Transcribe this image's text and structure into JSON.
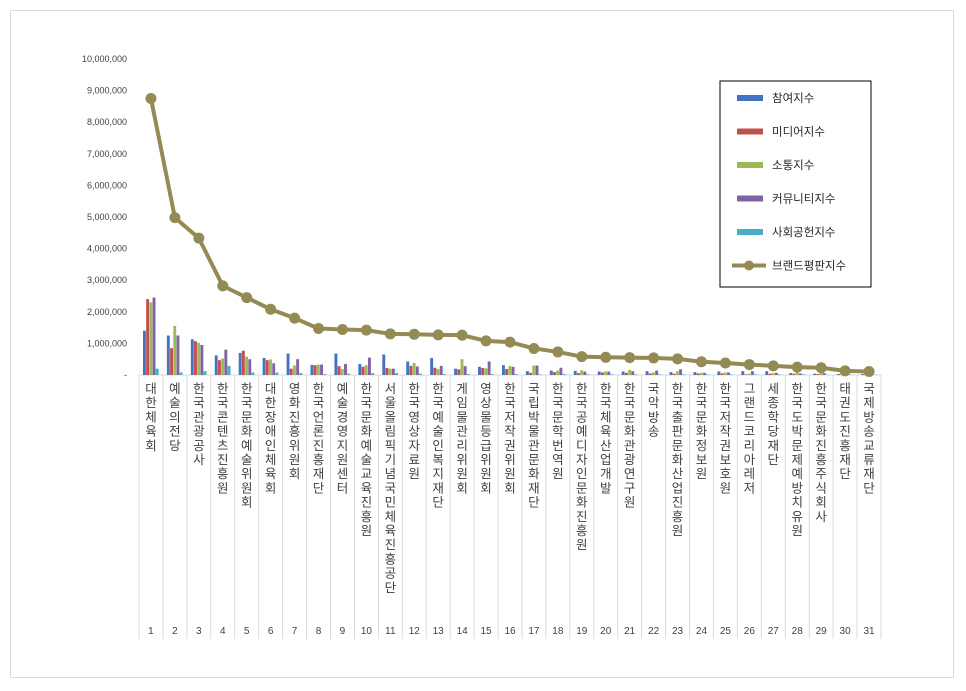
{
  "chart_data": {
    "type": "bar",
    "title": "",
    "xlabel": "",
    "ylabel": "",
    "ylim": [
      0,
      10000000
    ],
    "yticks": [
      "-",
      "1,000,000",
      "2,000,000",
      "3,000,000",
      "4,000,000",
      "5,000,000",
      "6,000,000",
      "7,000,000",
      "8,000,000",
      "9,000,000",
      "10,000,000"
    ],
    "grid": false,
    "legend_position": "top-right",
    "categories": [
      "대한체육회",
      "예술의전당",
      "한국관광공사",
      "한국콘텐츠진흥원",
      "한국문화예술위원회",
      "대한장애인체육회",
      "영화진흥위원회",
      "한국언론진흥재단",
      "예술경영지원센터",
      "한국문화예술교육진흥원",
      "서울올림픽기념국민체육진흥공단",
      "한국영상자료원",
      "한국예술인복지재단",
      "게임물관리위원회",
      "영상물등급위원회",
      "한국저작권위원회",
      "국립박물관문화재단",
      "한국문학번역원",
      "한국공예디자인문화진흥원",
      "한국체육산업개발",
      "한국문화관광연구원",
      "국악방송",
      "한국출판문화산업진흥원",
      "한국문화정보원",
      "한국저작권보호원",
      "그랜드코리아레저",
      "세종학당재단",
      "한국도박문제예방치유원",
      "한국문화진흥주식회사",
      "태권도진흥재단",
      "국제방송교류재단"
    ],
    "ranks": [
      "1",
      "2",
      "3",
      "4",
      "5",
      "6",
      "7",
      "8",
      "9",
      "10",
      "11",
      "12",
      "13",
      "14",
      "15",
      "16",
      "17",
      "18",
      "19",
      "20",
      "21",
      "22",
      "23",
      "24",
      "25",
      "26",
      "27",
      "28",
      "29",
      "30",
      "31"
    ],
    "series": [
      {
        "name": "참여지수",
        "color": "#4472c4",
        "type": "bar",
        "values": [
          1400000,
          1250000,
          1130000,
          620000,
          700000,
          540000,
          680000,
          320000,
          680000,
          350000,
          650000,
          430000,
          540000,
          200000,
          260000,
          310000,
          120000,
          140000,
          130000,
          110000,
          110000,
          120000,
          90000,
          90000,
          110000,
          120000,
          120000,
          60000,
          40000,
          30000,
          30000
        ]
      },
      {
        "name": "미디어지수",
        "color": "#c0504d",
        "type": "bar",
        "values": [
          2400000,
          850000,
          1070000,
          470000,
          770000,
          470000,
          200000,
          310000,
          280000,
          260000,
          220000,
          290000,
          230000,
          180000,
          220000,
          190000,
          70000,
          90000,
          60000,
          80000,
          70000,
          50000,
          40000,
          50000,
          50000,
          20000,
          40000,
          40000,
          30000,
          20000,
          20000
        ]
      },
      {
        "name": "소통지수",
        "color": "#9bbb59",
        "type": "bar",
        "values": [
          2300000,
          1550000,
          1020000,
          520000,
          580000,
          490000,
          300000,
          330000,
          190000,
          310000,
          200000,
          380000,
          190000,
          500000,
          210000,
          280000,
          300000,
          140000,
          150000,
          110000,
          160000,
          80000,
          120000,
          70000,
          80000,
          40000,
          60000,
          80000,
          60000,
          30000,
          20000
        ]
      },
      {
        "name": "커뮤니티지수",
        "color": "#8064a2",
        "type": "bar",
        "values": [
          2450000,
          1250000,
          950000,
          800000,
          500000,
          370000,
          500000,
          330000,
          350000,
          550000,
          200000,
          270000,
          290000,
          280000,
          430000,
          260000,
          300000,
          230000,
          110000,
          110000,
          120000,
          140000,
          180000,
          70000,
          80000,
          120000,
          70000,
          50000,
          60000,
          60000,
          20000
        ]
      },
      {
        "name": "사회공헌지수",
        "color": "#4bacc6",
        "type": "bar",
        "values": [
          200000,
          80000,
          120000,
          290000,
          80000,
          80000,
          60000,
          30000,
          40000,
          60000,
          60000,
          40000,
          30000,
          30000,
          30000,
          30000,
          20000,
          30000,
          20000,
          20000,
          20000,
          20000,
          20000,
          20000,
          20000,
          20000,
          20000,
          20000,
          10000,
          10000,
          10000
        ]
      },
      {
        "name": "브랜드평판지수",
        "color": "#948a54",
        "type": "line",
        "values": [
          8750000,
          4980000,
          4330000,
          2820000,
          2450000,
          2080000,
          1800000,
          1470000,
          1440000,
          1420000,
          1300000,
          1290000,
          1270000,
          1260000,
          1080000,
          1040000,
          840000,
          730000,
          580000,
          560000,
          550000,
          540000,
          510000,
          420000,
          380000,
          330000,
          290000,
          250000,
          230000,
          130000,
          110000
        ]
      }
    ]
  }
}
